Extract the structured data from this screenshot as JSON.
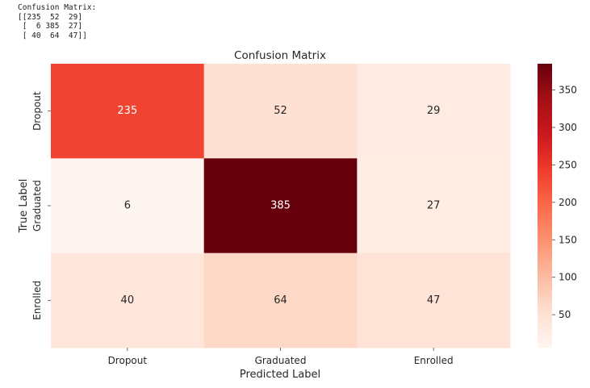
{
  "console": {
    "lines": [
      "Confusion Matrix:",
      "[[235  52  29]",
      " [  6 385  27]",
      " [ 40  64  47]]"
    ]
  },
  "chart_data": {
    "type": "heatmap",
    "title": "Confusion Matrix",
    "xlabel": "Predicted Label",
    "ylabel": "True Label",
    "x_categories": [
      "Dropout",
      "Graduated",
      "Enrolled"
    ],
    "y_categories": [
      "Dropout",
      "Graduated",
      "Enrolled"
    ],
    "values": [
      [
        235,
        52,
        29
      ],
      [
        6,
        385,
        27
      ],
      [
        40,
        64,
        47
      ]
    ],
    "colormap": "Reds",
    "vmin": 6,
    "vmax": 385,
    "colorbar_ticks": [
      50,
      100,
      150,
      200,
      250,
      300,
      350
    ],
    "annotations": true
  }
}
